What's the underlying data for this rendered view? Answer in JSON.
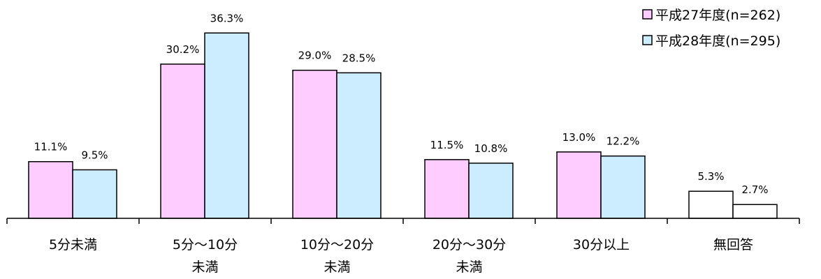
{
  "chart_data": {
    "type": "bar",
    "title": "",
    "xlabel": "",
    "ylabel": "",
    "ylim": [
      0,
      40
    ],
    "grid": false,
    "legend_position": "top-right",
    "categories": [
      [
        "5分未満"
      ],
      [
        "5分～10分",
        "未満"
      ],
      [
        "10分～20分",
        "未満"
      ],
      [
        "20分～30分",
        "未満"
      ],
      [
        "30分以上"
      ],
      [
        "無回答"
      ]
    ],
    "series": [
      {
        "name": "平成27年度(n=262)",
        "color": "#FFCCFF",
        "values": [
          11.1,
          30.2,
          29.0,
          11.5,
          13.0,
          5.3
        ],
        "labels": [
          "11.1%",
          "30.2%",
          "29.0%",
          "11.5%",
          "13.0%",
          "5.3%"
        ]
      },
      {
        "name": "平成28年度(n=295)",
        "color": "#CCECFF",
        "values": [
          9.5,
          36.3,
          28.5,
          10.8,
          12.2,
          2.7
        ],
        "labels": [
          "9.5%",
          "36.3%",
          "28.5%",
          "10.8%",
          "12.2%",
          "2.7%"
        ]
      }
    ],
    "no_answer_color": "#FFFFFF",
    "bar_stroke_color": "#000000"
  }
}
